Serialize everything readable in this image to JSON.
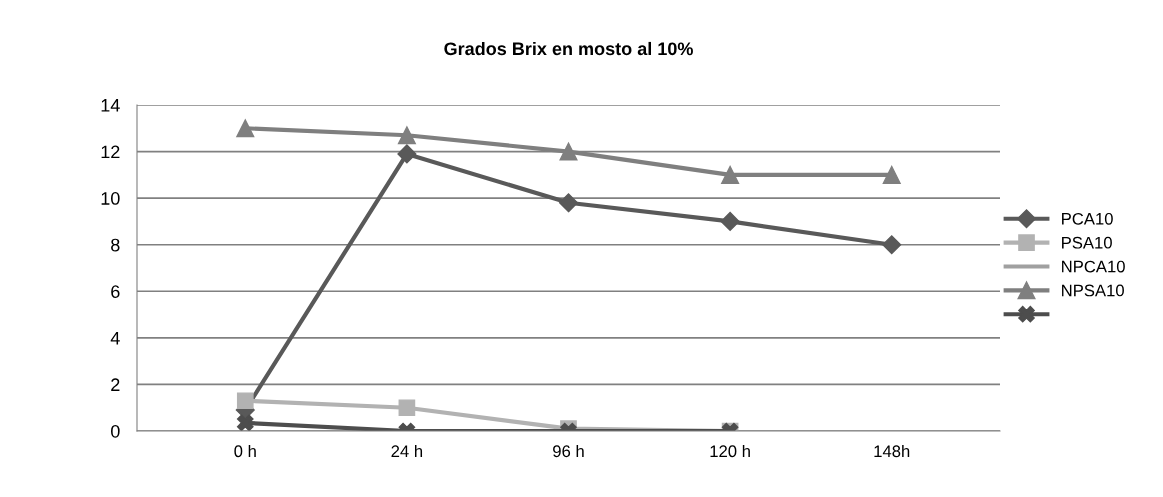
{
  "chart_data": {
    "type": "line",
    "title": "Grados Brix en mosto al 10%",
    "categories": [
      "0 h",
      "24 h",
      "96 h",
      "120 h",
      "148h"
    ],
    "series": [
      {
        "name": "PCA10",
        "color": "#595959",
        "marker": "diamond",
        "values": [
          0.9,
          11.9,
          9.8,
          9.0,
          8.0
        ]
      },
      {
        "name": "PSA10",
        "color": "#b2b2b2",
        "marker": "square",
        "values": [
          1.3,
          1.0,
          0.1,
          0.0,
          null
        ]
      },
      {
        "name": "NPCA10",
        "color": "#a0a0a0",
        "marker": "none",
        "values": [
          null,
          null,
          null,
          null,
          null
        ]
      },
      {
        "name": "NPSA10",
        "color": "#7f7f7f",
        "marker": "triangle",
        "values": [
          13.0,
          12.7,
          12.0,
          11.0,
          11.0
        ]
      },
      {
        "color": "#4d4d4d",
        "marker": "cross",
        "values": [
          0.35,
          0.0,
          0.0,
          0.0,
          null
        ]
      }
    ],
    "ylim": [
      0,
      14
    ],
    "yticks": [
      0,
      2,
      4,
      6,
      8,
      10,
      12,
      14
    ],
    "grid": "y",
    "legend": "right"
  }
}
